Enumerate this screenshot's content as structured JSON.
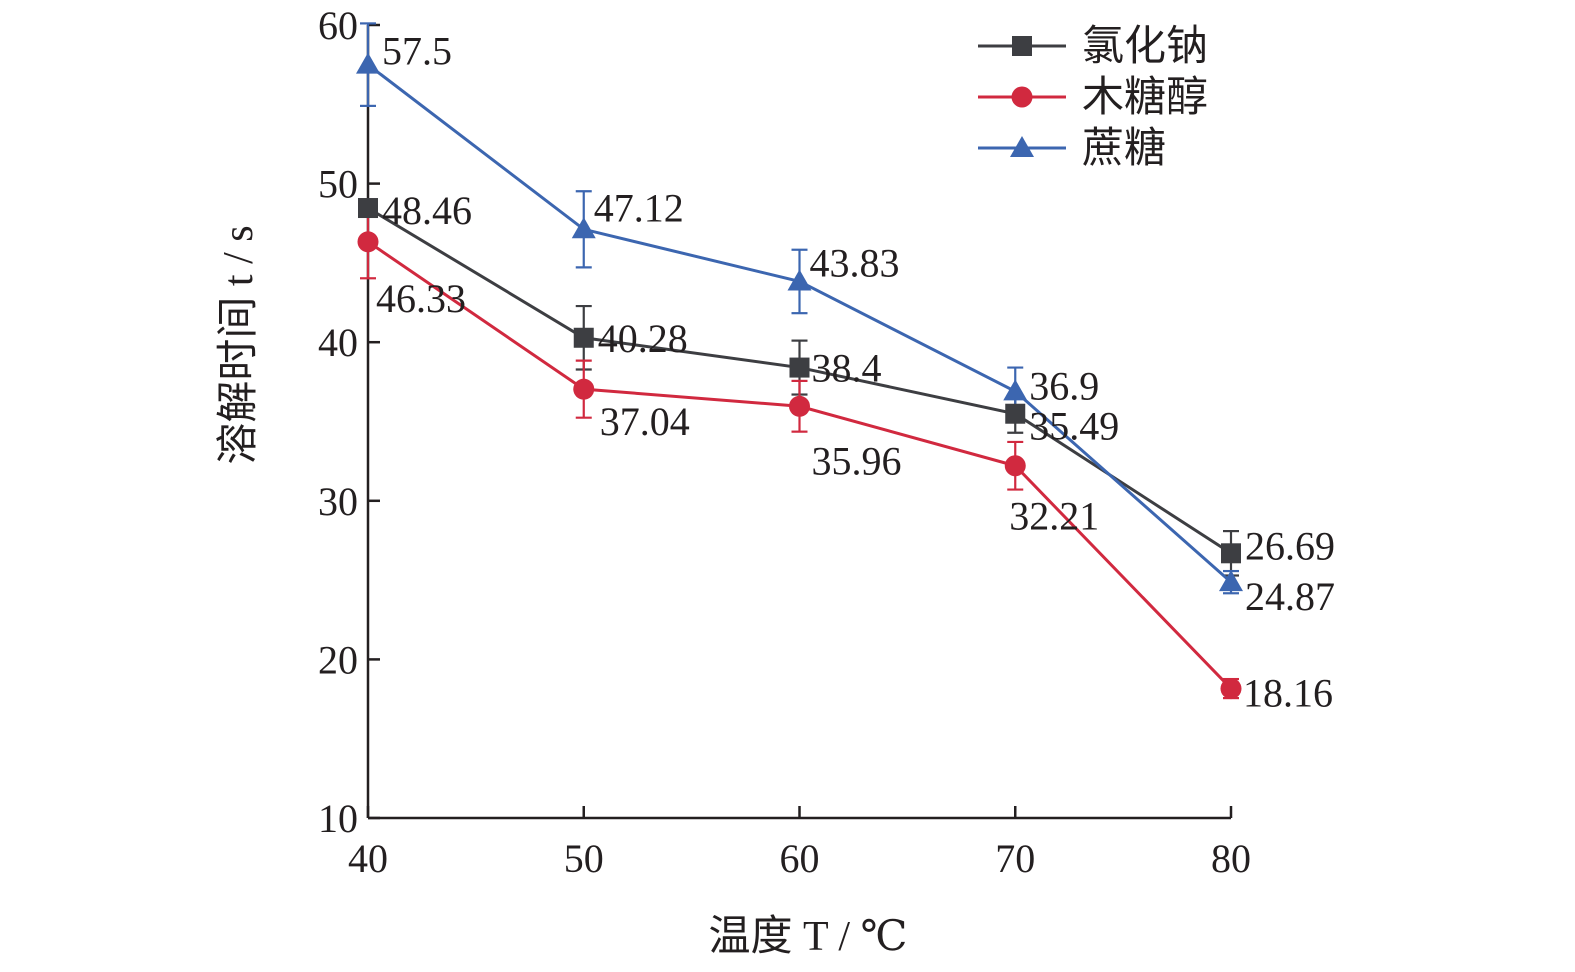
{
  "chart_data": {
    "type": "line",
    "x": [
      40,
      50,
      60,
      70,
      80
    ],
    "xlabel": "温度 T / ℃",
    "ylabel": "溶解时间 t / s",
    "xlim": [
      40,
      80
    ],
    "ylim": [
      10,
      60
    ],
    "xticks": [
      40,
      50,
      60,
      70,
      80
    ],
    "yticks": [
      10,
      20,
      30,
      40,
      50,
      60
    ],
    "grid": false,
    "legend": "top-right",
    "series": [
      {
        "name": "氯化钠",
        "color": "#3d3e42",
        "marker": "square",
        "values": [
          48.46,
          40.28,
          38.4,
          35.49,
          26.69
        ],
        "error": [
          0,
          2.0,
          1.7,
          1.2,
          1.4
        ],
        "labels": [
          "48.46",
          "40.28",
          "38.4",
          "35.49",
          "26.69"
        ]
      },
      {
        "name": "木糖醇",
        "color": "#d1293f",
        "marker": "circle",
        "values": [
          46.33,
          37.04,
          35.96,
          32.21,
          18.16
        ],
        "error": [
          2.3,
          1.8,
          1.6,
          1.5,
          0.6
        ],
        "labels": [
          "46.33",
          "37.04",
          "35.96",
          "32.21",
          "18.16"
        ]
      },
      {
        "name": "蔗糖",
        "color": "#3c66b0",
        "marker": "triangle",
        "values": [
          57.5,
          47.12,
          43.83,
          36.9,
          24.87
        ],
        "error": [
          2.6,
          2.4,
          2.0,
          1.5,
          0.7
        ],
        "labels": [
          "57.5",
          "47.12",
          "43.83",
          "36.9",
          "24.87"
        ]
      }
    ]
  }
}
